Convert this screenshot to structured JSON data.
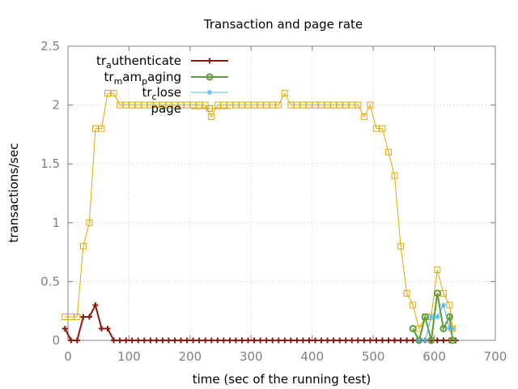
{
  "chart_data": {
    "type": "line",
    "title": "Transaction and page rate",
    "xlabel": "time (sec of the running test)",
    "ylabel": "transactions/sec",
    "xlim": [
      0,
      700
    ],
    "ylim": [
      0,
      2.5
    ],
    "x_ticks": [
      0,
      100,
      200,
      300,
      400,
      500,
      600,
      700
    ],
    "y_ticks": [
      0,
      0.5,
      1,
      1.5,
      2,
      2.5
    ],
    "grid": true,
    "legend_position": "top-left",
    "series": [
      {
        "legend": {
          "base": "tr",
          "sub": "a",
          "rest": "uthenticate"
        },
        "color": "#8b1a0e",
        "marker": "plus",
        "x": [
          -5,
          5,
          15,
          25,
          35,
          45,
          55,
          65,
          75,
          85,
          95,
          105,
          115,
          125,
          135,
          145,
          155,
          165,
          175,
          185,
          195,
          205,
          215,
          225,
          235,
          245,
          255,
          265,
          275,
          285,
          295,
          305,
          315,
          325,
          335,
          345,
          355,
          365,
          375,
          385,
          395,
          405,
          415,
          425,
          435,
          445,
          455,
          465,
          475,
          485,
          495,
          505,
          515,
          525,
          535,
          545,
          555,
          565,
          575,
          585,
          595,
          605,
          615,
          625,
          635
        ],
        "y": [
          0.1,
          0,
          0,
          0.2,
          0.2,
          0.3,
          0.1,
          0.1,
          0,
          0,
          0,
          0,
          0,
          0,
          0,
          0,
          0,
          0,
          0,
          0,
          0,
          0,
          0,
          0,
          0,
          0,
          0,
          0,
          0,
          0,
          0,
          0,
          0,
          0,
          0,
          0,
          0,
          0,
          0,
          0,
          0,
          0,
          0,
          0,
          0,
          0,
          0,
          0,
          0,
          0,
          0,
          0,
          0,
          0,
          0,
          0,
          0,
          0,
          0,
          0,
          0,
          0,
          0,
          0,
          0
        ]
      },
      {
        "legend": {
          "base": "tr",
          "sub": "m",
          "rest": "am",
          "sub2": "p",
          "rest2": "aging"
        },
        "color": "#5e9c36",
        "marker": "circle",
        "x": [
          565,
          575,
          585,
          595,
          605,
          615,
          625,
          630
        ],
        "y": [
          0.1,
          0,
          0.2,
          0,
          0.4,
          0.1,
          0.2,
          0
        ]
      },
      {
        "legend": {
          "base": "tr",
          "sub": "c",
          "rest": "lose"
        },
        "color": "#56b4e9",
        "marker": "star",
        "x": [
          575,
          585,
          595,
          605,
          615,
          625,
          630
        ],
        "y": [
          0,
          0,
          0.2,
          0.2,
          0.3,
          0.1,
          0.1
        ]
      },
      {
        "legend": {
          "base": "page"
        },
        "color": "#e0a800",
        "marker": "square",
        "x": [
          -5,
          5,
          15,
          25,
          35,
          45,
          55,
          65,
          75,
          85,
          95,
          105,
          115,
          125,
          135,
          145,
          155,
          165,
          175,
          185,
          195,
          205,
          215,
          225,
          235,
          245,
          255,
          265,
          275,
          285,
          295,
          305,
          315,
          325,
          335,
          345,
          355,
          365,
          375,
          385,
          395,
          405,
          415,
          425,
          435,
          445,
          455,
          465,
          475,
          485,
          495,
          505,
          515,
          525,
          535,
          545,
          555,
          565,
          575,
          585,
          595,
          605,
          615,
          625,
          630
        ],
        "y": [
          0.2,
          0.2,
          0.2,
          0.8,
          1.0,
          1.8,
          1.8,
          2.1,
          2.1,
          2.0,
          2.0,
          2.0,
          2.0,
          2.0,
          2.0,
          2.0,
          2.0,
          2.0,
          2.0,
          2.0,
          2.0,
          2.0,
          2.0,
          2.0,
          1.9,
          2.0,
          2.0,
          2.0,
          2.0,
          2.0,
          2.0,
          2.0,
          2.0,
          2.0,
          2.0,
          2.0,
          2.1,
          2.0,
          2.0,
          2.0,
          2.0,
          2.0,
          2.0,
          2.0,
          2.0,
          2.0,
          2.0,
          2.0,
          2.0,
          1.9,
          2.0,
          1.8,
          1.8,
          1.6,
          1.4,
          0.8,
          0.4,
          0.3,
          0.1,
          0.2,
          0.2,
          0.6,
          0.4,
          0.3,
          0.1
        ]
      }
    ]
  }
}
